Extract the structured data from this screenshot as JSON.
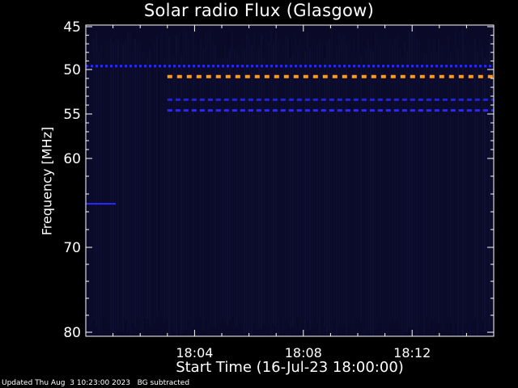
{
  "chart_data": {
    "type": "heatmap",
    "title": "Solar radio Flux (Glasgow)",
    "xlabel": "Start Time (16-Jul-23 18:00:00)",
    "ylabel": "Frequency [MHz]",
    "xlim_minutes": [
      0,
      15
    ],
    "ylim": [
      45,
      80
    ],
    "x_ticks": [
      "18:04",
      "18:08",
      "18:12"
    ],
    "y_ticks": [
      45,
      50,
      55,
      60,
      70,
      80
    ],
    "grid": false,
    "background_color": "#0a0a28",
    "features": [
      {
        "type": "hline",
        "frequency": 49.6,
        "start_minute": 0,
        "end_minute": 15,
        "color": "#2a2aff",
        "style": "dotted"
      },
      {
        "type": "hline",
        "frequency": 50.8,
        "start_minute": 3,
        "end_minute": 15,
        "color": "#ff9a1a",
        "style": "dashed"
      },
      {
        "type": "hline",
        "frequency": 53.4,
        "start_minute": 3,
        "end_minute": 15,
        "color": "#2222dd",
        "style": "dashed"
      },
      {
        "type": "hline",
        "frequency": 54.6,
        "start_minute": 3,
        "end_minute": 15,
        "color": "#2a2aff",
        "style": "dashed"
      },
      {
        "type": "hline",
        "frequency": 65.1,
        "start_minute": 0,
        "end_minute": 1.1,
        "color": "#2a2aff",
        "style": "solid"
      }
    ]
  },
  "footer": {
    "updated": "Updated Thu Aug  3 10:23:00 2023",
    "note": "BG subtracted"
  }
}
